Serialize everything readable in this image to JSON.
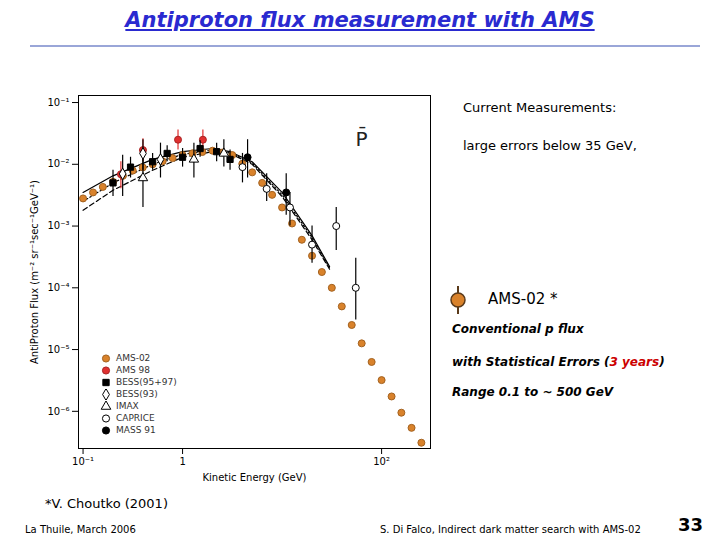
{
  "chart_data": {
    "type": "scatter",
    "log": true,
    "grid": false,
    "legend": "bottom-left",
    "x_label": "Kinetic Energy (GeV)",
    "y_label": "AntiProton Flux (m⁻² sr⁻¹sec⁻¹GeV⁻¹)",
    "xlim": [
      0.09,
      310
    ],
    "ylim": [
      2.5e-07,
      0.13
    ],
    "xticks": [
      {
        "value": 0.1,
        "label": "10⁻¹"
      },
      1,
      {
        "value": 100,
        "label": "10²"
      }
    ],
    "yticks": [
      {
        "value": 0.1,
        "label": "10⁻¹"
      },
      {
        "value": 0.01,
        "label": "10⁻²"
      },
      {
        "value": 0.001,
        "label": "10⁻³"
      },
      {
        "value": 0.0001,
        "label": "10⁻⁴"
      },
      {
        "value": 1e-05,
        "label": "10⁻⁵"
      },
      {
        "value": 1e-06,
        "label": "10⁻⁶"
      }
    ],
    "annotations": [
      {
        "text": "P̄",
        "x": 63,
        "y": 0.025
      }
    ],
    "series": [
      {
        "type": "line",
        "color": "#000000",
        "line_style": "solid",
        "x": [
          0.1,
          0.2,
          0.5,
          1,
          2,
          3,
          5,
          10,
          20,
          30
        ],
        "values": [
          0.0035,
          0.0065,
          0.012,
          0.016,
          0.018,
          0.016,
          0.011,
          0.0035,
          0.0007,
          0.00022
        ]
      },
      {
        "type": "line",
        "color": "#000000",
        "line_style": "dashed",
        "x": [
          0.1,
          0.2,
          0.5,
          1,
          2,
          3,
          5,
          10,
          20,
          30
        ],
        "values": [
          0.0018,
          0.0038,
          0.008,
          0.013,
          0.016,
          0.015,
          0.01,
          0.003,
          0.0006,
          0.0002
        ]
      },
      {
        "type": "line",
        "color": "#000000",
        "line_style": "dotted",
        "x": [
          0.1,
          0.2,
          0.5,
          1,
          2,
          3,
          5,
          10,
          20,
          30
        ],
        "values": [
          0.0025,
          0.005,
          0.01,
          0.0145,
          0.017,
          0.0155,
          0.0105,
          0.0032,
          0.00065,
          0.00021
        ]
      },
      {
        "name": "AMS-02",
        "color": "#d9822b",
        "marker": "circle",
        "x": [
          0.1,
          0.126,
          0.158,
          0.2,
          0.251,
          0.316,
          0.398,
          0.501,
          0.631,
          0.794,
          1,
          1.26,
          1.58,
          2,
          2.51,
          3.16,
          3.98,
          5.01,
          6.31,
          7.94,
          10,
          12.6,
          15.8,
          20,
          25.1,
          31.6,
          39.8,
          50.1,
          63.1,
          79.4,
          100,
          126,
          158,
          200,
          251
        ],
        "values": [
          0.0028,
          0.0035,
          0.0043,
          0.0052,
          0.0065,
          0.0079,
          0.0089,
          0.01,
          0.0112,
          0.0126,
          0.0141,
          0.0151,
          0.0158,
          0.0166,
          0.0155,
          0.0141,
          0.0102,
          0.0074,
          0.005,
          0.0032,
          0.002,
          0.0011,
          0.0006,
          0.00033,
          0.00018,
          0.0001,
          5e-05,
          2.5e-05,
          1.26e-05,
          6.3e-06,
          3.2e-06,
          1.74e-06,
          9.5e-07,
          5.4e-07,
          3.1e-07
        ]
      },
      {
        "name": "AMS 98",
        "color": "#e03030",
        "marker": "circle",
        "x": [
          0.24,
          0.4,
          0.9,
          1.6
        ],
        "values": [
          0.0069,
          0.017,
          0.025,
          0.025
        ],
        "lower": [
          0.004,
          0.011,
          0.017,
          0.017
        ],
        "upper": [
          0.011,
          0.026,
          0.036,
          0.036
        ]
      },
      {
        "name": "BESS(95+97)",
        "color": "#000000",
        "marker": "square",
        "x": [
          0.2,
          0.3,
          0.5,
          0.7,
          1,
          1.5,
          2.2,
          3
        ],
        "values": [
          0.005,
          0.009,
          0.011,
          0.015,
          0.013,
          0.018,
          0.016,
          0.012
        ],
        "lower": [
          0.003,
          0.006,
          0.008,
          0.011,
          0.009,
          0.013,
          0.011,
          0.008
        ],
        "upper": [
          0.008,
          0.013,
          0.015,
          0.02,
          0.018,
          0.024,
          0.022,
          0.017
        ]
      },
      {
        "name": "BESS(93)",
        "color": "#000000",
        "marker": "open_diamond",
        "x": [
          0.25,
          0.4,
          0.6
        ],
        "values": [
          0.007,
          0.015,
          0.012
        ],
        "lower": [
          0.003,
          0.008,
          0.006
        ],
        "upper": [
          0.014,
          0.025,
          0.022
        ]
      },
      {
        "name": "IMAX",
        "color": "#000000",
        "marker": "open_triangle",
        "x": [
          0.4,
          1.3,
          2.6
        ],
        "values": [
          0.006,
          0.012,
          0.015
        ],
        "lower": [
          0.002,
          0.006,
          0.009
        ],
        "upper": [
          0.012,
          0.022,
          0.025
        ]
      },
      {
        "name": "CAPRICE",
        "color": "#000000",
        "marker": "open_circle",
        "x": [
          4,
          7,
          12,
          20,
          35,
          55
        ],
        "values": [
          0.009,
          0.004,
          0.002,
          0.0005,
          0.001,
          0.0001
        ],
        "lower": [
          0.005,
          0.0025,
          0.001,
          0.00025,
          0.0004,
          3e-05
        ],
        "upper": [
          0.015,
          0.007,
          0.0035,
          0.001,
          0.002,
          0.0003
        ]
      },
      {
        "name": "MASS 91",
        "color": "#000000",
        "marker": "circle",
        "x": [
          4.5,
          11
        ],
        "values": [
          0.013,
          0.0035
        ],
        "lower": [
          0.006,
          0.0015
        ],
        "upper": [
          0.025,
          0.007
        ]
      }
    ]
  },
  "slide": {
    "title": "Antiproton flux measurement with AMS",
    "current": [
      "Current Measurements:",
      "large errors below 35 GeV,"
    ],
    "ams02_label": "AMS-02 *",
    "ams02_lines": [
      [
        {
          "text": "Conventional p flux"
        }
      ],
      [
        {
          "text": "with Statistical Errors ("
        },
        {
          "text": "3 years",
          "color": "#cc0000"
        },
        {
          "text": ")"
        }
      ],
      [
        {
          "text": "Range 0.1 to ~ 500 GeV"
        }
      ]
    ],
    "footnote": "*V. Choutko (2001)",
    "footer_left": "La Thuile, March 2006",
    "footer_center": "S. Di Falco, Indirect dark matter search with AMS-02",
    "page": "33"
  }
}
